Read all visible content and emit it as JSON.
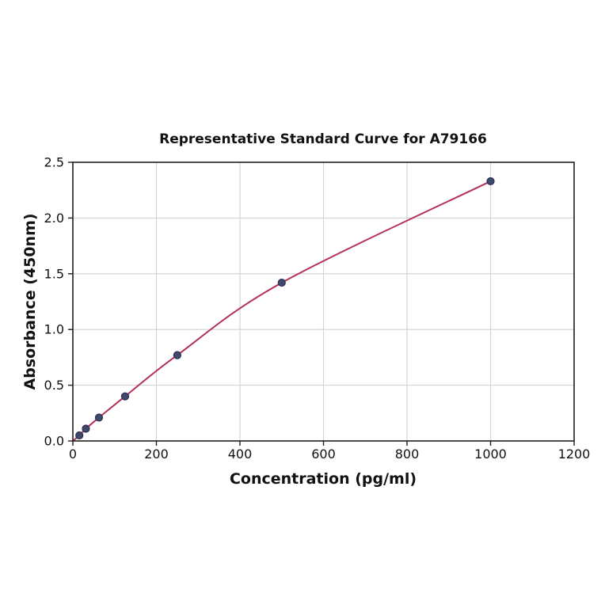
{
  "chart_data": {
    "type": "line",
    "title": "Representative Standard Curve for A79166",
    "xlabel": "Concentration (pg/ml)",
    "ylabel": "Absorbance (450nm)",
    "x": [
      15.6,
      31.2,
      62.5,
      125,
      250,
      500,
      1000
    ],
    "y": [
      0.05,
      0.11,
      0.21,
      0.4,
      0.77,
      1.42,
      2.33
    ],
    "curve_origin": {
      "x": 0,
      "y": 0
    },
    "xlim": [
      0,
      1200
    ],
    "ylim": [
      0,
      2.5
    ],
    "xtick_values": [
      0,
      200,
      400,
      600,
      800,
      1000,
      1200
    ],
    "xtick_labels": [
      "0",
      "200",
      "400",
      "600",
      "800",
      "1000",
      "1200"
    ],
    "ytick_values": [
      0,
      0.5,
      1.0,
      1.5,
      2.0,
      2.5
    ],
    "ytick_labels": [
      "0.0",
      "0.5",
      "1.0",
      "1.5",
      "2.0",
      "2.5"
    ],
    "grid": true,
    "legend_position": "none",
    "colors": {
      "curve": "#b23258",
      "marker_fill": "#3d4a6b",
      "marker_edge": "#2f2a52",
      "grid": "#d2d2d2",
      "spine": "#1f1f1f",
      "text": "#111111",
      "background": "#ffffff"
    }
  }
}
